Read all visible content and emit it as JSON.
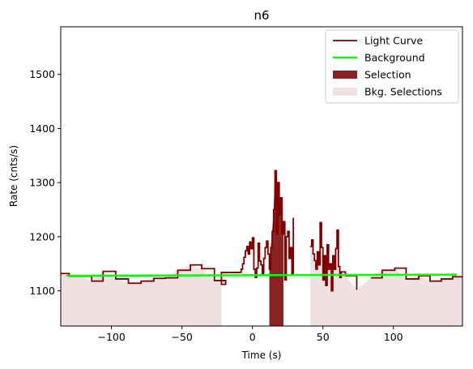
{
  "chart_data": {
    "type": "line",
    "title": "n6",
    "xlabel": "Time (s)",
    "ylabel": "Rate (cnts/s)",
    "xlim": [
      -136,
      149
    ],
    "ylim": [
      1035,
      1588
    ],
    "xticks": [
      -100,
      -50,
      0,
      50,
      100
    ],
    "xtick_labels": [
      "−100",
      "−50",
      "0",
      "50",
      "100"
    ],
    "yticks": [
      1100,
      1200,
      1300,
      1400,
      1500
    ],
    "ytick_labels": [
      "1100",
      "1200",
      "1300",
      "1400",
      "1500"
    ],
    "grid": false,
    "legend_position": "top-right",
    "legend": [
      {
        "label": "Light Curve",
        "kind": "line",
        "color": "#800000"
      },
      {
        "label": "Background",
        "kind": "line",
        "color": "#00ff00"
      },
      {
        "label": "Selection",
        "kind": "patch",
        "color": "#8b2222"
      },
      {
        "label": "Bkg. Selections",
        "kind": "patch",
        "color": "#efe1e1"
      }
    ],
    "colors": {
      "light_curve": "#800000",
      "background": "#00ff00",
      "selection": "#8b2222",
      "bkg_selection": "#efe1e1"
    },
    "background_level": [
      [
        -132,
        1128
      ],
      [
        145,
        1130
      ]
    ],
    "selection_range": [
      12,
      22
    ],
    "bkg_selection_ranges": [
      [
        -136,
        -22
      ],
      [
        41,
        149
      ]
    ],
    "light_curve": [
      [
        -136,
        1132
      ],
      [
        -130,
        1127
      ],
      [
        -122,
        1127
      ],
      [
        -114,
        1118
      ],
      [
        -106,
        1136
      ],
      [
        -97,
        1122
      ],
      [
        -88,
        1114
      ],
      [
        -79,
        1118
      ],
      [
        -70,
        1123
      ],
      [
        -62,
        1124
      ],
      [
        -53,
        1138
      ],
      [
        -44,
        1148
      ],
      [
        -36,
        1141
      ],
      [
        -27,
        1119
      ],
      [
        -19,
        1112
      ],
      [
        -22,
        1112
      ],
      [
        -22,
        1134
      ],
      [
        -13,
        1134
      ],
      [
        -8,
        1133
      ],
      [
        -8,
        1140
      ],
      [
        -7,
        1150
      ],
      [
        -6,
        1162
      ],
      [
        -5,
        1174
      ],
      [
        -4,
        1182
      ],
      [
        -3,
        1168
      ],
      [
        -2,
        1190
      ],
      [
        -1,
        1178
      ],
      [
        0,
        1198
      ],
      [
        1,
        1140
      ],
      [
        2,
        1125
      ],
      [
        3,
        1142
      ],
      [
        4,
        1188
      ],
      [
        5,
        1155
      ],
      [
        6,
        1148
      ],
      [
        7,
        1130
      ],
      [
        8,
        1160
      ],
      [
        9,
        1180
      ],
      [
        10,
        1192
      ],
      [
        11,
        1168
      ],
      [
        12,
        1140
      ],
      [
        13,
        1180
      ],
      [
        14,
        1210
      ],
      [
        15,
        1250
      ],
      [
        16,
        1322
      ],
      [
        17,
        1205
      ],
      [
        18,
        1300
      ],
      [
        19,
        1240
      ],
      [
        20,
        1272
      ],
      [
        21,
        1205
      ],
      [
        22,
        1228
      ],
      [
        23,
        1120
      ],
      [
        24,
        1200
      ],
      [
        25,
        1210
      ],
      [
        26,
        1160
      ],
      [
        27,
        1180
      ],
      [
        28,
        1130
      ],
      [
        29,
        1235
      ],
      [
        41,
        1182
      ],
      [
        42,
        1194
      ],
      [
        43,
        1168
      ],
      [
        44,
        1156
      ],
      [
        45,
        1140
      ],
      [
        46,
        1172
      ],
      [
        47,
        1148
      ],
      [
        48,
        1226
      ],
      [
        49,
        1180
      ],
      [
        50,
        1120
      ],
      [
        51,
        1165
      ],
      [
        52,
        1110
      ],
      [
        53,
        1185
      ],
      [
        54,
        1140
      ],
      [
        55,
        1150
      ],
      [
        56,
        1100
      ],
      [
        57,
        1165
      ],
      [
        58,
        1140
      ],
      [
        59,
        1178
      ],
      [
        60,
        1212
      ],
      [
        61,
        1145
      ],
      [
        62,
        1125
      ],
      [
        63,
        1135
      ],
      [
        66,
        1128
      ],
      [
        74,
        1102
      ],
      [
        84,
        1124
      ],
      [
        92,
        1138
      ],
      [
        101,
        1142
      ],
      [
        109,
        1122
      ],
      [
        118,
        1128
      ],
      [
        126,
        1118
      ],
      [
        134,
        1122
      ],
      [
        142,
        1126
      ],
      [
        149,
        1126
      ]
    ]
  }
}
